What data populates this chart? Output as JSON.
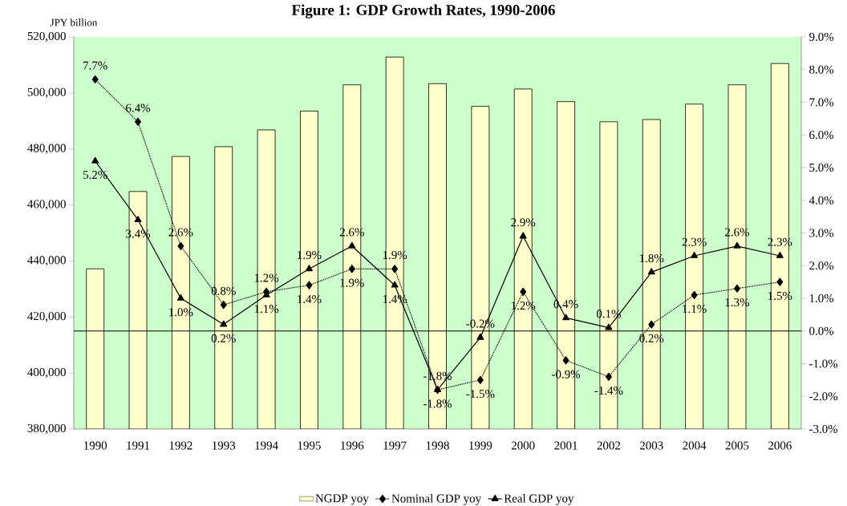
{
  "chart_data": {
    "type": "bar",
    "title": "Figure 1: GDP Growth Rates, 1990-2006",
    "ylabel": "JPY billion",
    "categories": [
      "1990",
      "1991",
      "1992",
      "1993",
      "1994",
      "1995",
      "1996",
      "1997",
      "1998",
      "1999",
      "2000",
      "2001",
      "2002",
      "2003",
      "2004",
      "2005",
      "2006"
    ],
    "series": [
      {
        "name": "NGDP yoy",
        "color": "#ffffcc",
        "values": [
          437200,
          464800,
          477300,
          480800,
          486800,
          493500,
          502900,
          512800,
          503300,
          495200,
          501400,
          496900,
          489700,
          490500,
          496000,
          502900,
          510500
        ]
      },
      {
        "name": "Nominal GDP yoy",
        "type": "line",
        "axis": "y2",
        "color": "#000000",
        "marker": "diamond",
        "line_style": "dotted",
        "values": [
          7.7,
          6.4,
          2.6,
          0.8,
          1.2,
          1.4,
          1.9,
          1.9,
          -1.8,
          -1.5,
          1.2,
          -0.9,
          -1.4,
          0.2,
          1.1,
          1.3,
          1.5
        ],
        "value_labels": [
          "7.7%",
          "6.4%",
          "2.6%",
          "0.8%",
          "1.2%",
          "1.4%",
          "1.9%",
          "1.9%",
          "-1.8%",
          "-1.5%",
          "1.2%",
          "-0.9%",
          "-1.4%",
          "0.2%",
          "1.1%",
          "1.3%",
          "1.5%"
        ]
      },
      {
        "name": "Real GDP yoy",
        "type": "line",
        "axis": "y2",
        "color": "#000000",
        "marker": "triangle",
        "line_style": "solid",
        "values": [
          5.2,
          3.4,
          1.0,
          0.2,
          1.1,
          1.9,
          2.6,
          1.4,
          -1.8,
          -0.2,
          2.9,
          0.4,
          0.1,
          1.8,
          2.3,
          2.6,
          2.3
        ],
        "value_labels": [
          "5.2%",
          "3.4%",
          "1.0%",
          "0.2%",
          "1.1%",
          "1.9%",
          "2.6%",
          "1.4%",
          "-1.8%",
          "-0.2%",
          "2.9%",
          "0.4%",
          "0.1%",
          "1.8%",
          "2.3%",
          "2.6%",
          "2.3%"
        ]
      }
    ],
    "ylim": [
      380000,
      520000
    ],
    "yticks": [
      {
        "value": 380000,
        "label": "380,000"
      },
      {
        "value": 400000,
        "label": "400,000"
      },
      {
        "value": 420000,
        "label": "420,000"
      },
      {
        "value": 440000,
        "label": "440,000"
      },
      {
        "value": 460000,
        "label": "460,000"
      },
      {
        "value": 480000,
        "label": "480,000"
      },
      {
        "value": 500000,
        "label": "500,000"
      },
      {
        "value": 520000,
        "label": "520,000"
      }
    ],
    "y2lim": [
      -3,
      9
    ],
    "y2ticks": [
      {
        "value": -3,
        "label": "-3.0%"
      },
      {
        "value": -2,
        "label": "-2.0%"
      },
      {
        "value": -1,
        "label": "-1.0%"
      },
      {
        "value": 0,
        "label": "0.0%"
      },
      {
        "value": 1,
        "label": "1.0%"
      },
      {
        "value": 2,
        "label": "2.0%"
      },
      {
        "value": 3,
        "label": "3.0%"
      },
      {
        "value": 4,
        "label": "4.0%"
      },
      {
        "value": 5,
        "label": "5.0%"
      },
      {
        "value": 6,
        "label": "6.0%"
      },
      {
        "value": 7,
        "label": "7.0%"
      },
      {
        "value": 8,
        "label": "8.0%"
      },
      {
        "value": 9,
        "label": "9.0%"
      }
    ],
    "ref_lines": [
      {
        "axis": "y2",
        "value": 0,
        "color": "#000000"
      }
    ],
    "grid": false,
    "legend": "bottom"
  }
}
